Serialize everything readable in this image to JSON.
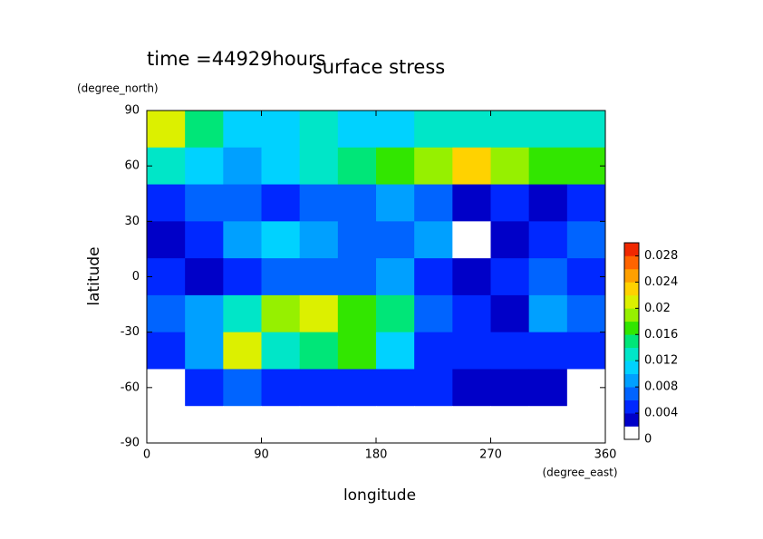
{
  "chart_data": {
    "type": "contour",
    "title": "surface stress",
    "annotation": "time =44929hours",
    "x_label": "longitude",
    "x_units": "(degree_east)",
    "y_label": "latitude",
    "y_units": "(degree_north)",
    "xlim": [
      0,
      360
    ],
    "ylim": [
      -90,
      90
    ],
    "xticks": [
      0,
      90,
      180,
      270,
      360
    ],
    "yticks": [
      -90,
      -60,
      -30,
      0,
      30,
      60,
      90
    ],
    "x": [
      15,
      45,
      75,
      105,
      135,
      165,
      195,
      225,
      255,
      285,
      315,
      345
    ],
    "y": [
      80,
      60,
      40,
      20,
      0,
      -20,
      -40,
      -60,
      -80
    ],
    "z": [
      [
        0.02,
        0.014,
        0.01,
        0.01,
        0.012,
        0.01,
        0.01,
        0.012,
        0.012,
        0.012,
        0.012,
        0.012
      ],
      [
        0.012,
        0.01,
        0.008,
        0.01,
        0.012,
        0.014,
        0.016,
        0.018,
        0.022,
        0.018,
        0.016,
        0.016
      ],
      [
        0.004,
        0.006,
        0.006,
        0.004,
        0.006,
        0.006,
        0.008,
        0.006,
        0.002,
        0.004,
        0.002,
        0.004
      ],
      [
        0.002,
        0.004,
        0.008,
        0.01,
        0.008,
        0.006,
        0.006,
        0.008,
        0,
        0.002,
        0.004,
        0.006
      ],
      [
        0.004,
        0.002,
        0.004,
        0.006,
        0.006,
        0.006,
        0.008,
        0.004,
        0.002,
        0.004,
        0.006,
        0.004
      ],
      [
        0.006,
        0.008,
        0.012,
        0.018,
        0.02,
        0.016,
        0.014,
        0.006,
        0.004,
        0.002,
        0.008,
        0.006
      ],
      [
        0.004,
        0.008,
        0.02,
        0.012,
        0.014,
        0.016,
        0.01,
        0.004,
        0.004,
        0.004,
        0.004,
        0.004
      ],
      [
        0,
        0.004,
        0.006,
        0.004,
        0.004,
        0.004,
        0.004,
        0.004,
        0.002,
        0.002,
        0.002,
        0
      ],
      [
        0,
        0,
        0,
        0,
        0,
        0,
        0,
        0,
        0,
        0,
        0,
        0
      ]
    ],
    "clim": [
      0,
      0.03
    ],
    "cticks": [
      0,
      0.004,
      0.008,
      0.012,
      0.016,
      0.02,
      0.024,
      0.028
    ],
    "colors": [
      "#ffffff",
      "#0000c8",
      "#0028ff",
      "#0064ff",
      "#00a0ff",
      "#00d2ff",
      "#00e6c8",
      "#00e678",
      "#32e600",
      "#96f000",
      "#dcf000",
      "#ffd200",
      "#ffa000",
      "#ff6400",
      "#f02800"
    ]
  }
}
